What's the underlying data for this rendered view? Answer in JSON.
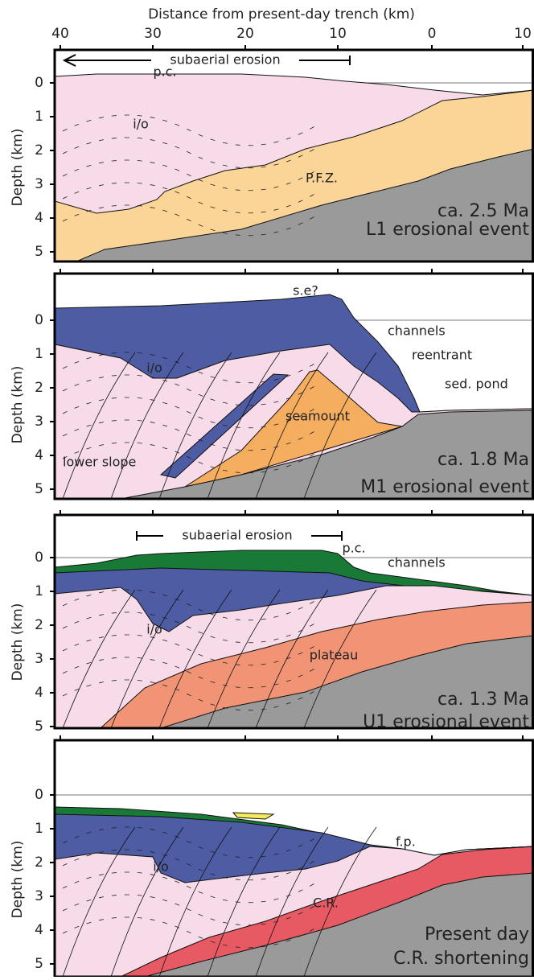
{
  "axis_title": "Distance from present-day trench (km)",
  "x_ticks": [
    "40",
    "30",
    "20",
    "10",
    "0",
    "10"
  ],
  "panels": [
    {
      "y_label": "Depth (km)",
      "y_ticks": [
        "0",
        "1",
        "2",
        "3",
        "4",
        "5"
      ],
      "age": "ca. 2.5 Ma",
      "event": "L1 erosional event",
      "labels": [
        "subaerial erosion",
        "p.c.",
        "i/o",
        "P.F.Z."
      ]
    },
    {
      "y_label": "Depth (km)",
      "y_ticks": [
        "0",
        "1",
        "2",
        "3",
        "4",
        "5"
      ],
      "age": "ca. 1.8 Ma",
      "event": "M1 erosional event",
      "labels": [
        "s.e?",
        "channels",
        "reentrant",
        "sed. pond",
        "i/o",
        "seamount",
        "lower slope"
      ]
    },
    {
      "y_label": "Depth (km)",
      "y_ticks": [
        "0",
        "1",
        "2",
        "3",
        "4",
        "5"
      ],
      "age": "ca. 1.3 Ma",
      "event": "U1 erosional event",
      "labels": [
        "subaerial erosion",
        "p.c.",
        "channels",
        "i/o",
        "plateau"
      ]
    },
    {
      "y_label": "Depth (km)",
      "y_ticks": [
        "0",
        "1",
        "2",
        "3",
        "4",
        "5"
      ],
      "age": "Present day",
      "event": "C.R. shortening",
      "labels": [
        "i/o",
        "f.p.",
        "C.R."
      ]
    }
  ]
}
